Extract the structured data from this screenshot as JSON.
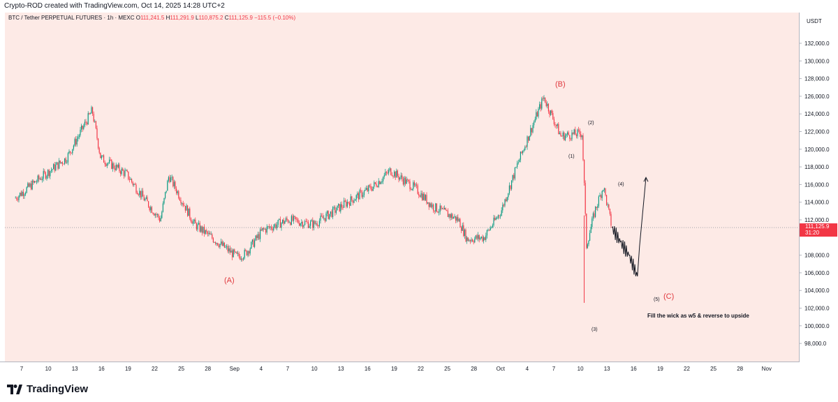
{
  "header": {
    "caption": "Crypto-ROD created with TradingView.com, Oct 14, 2025 14:28 UTC+2"
  },
  "legend": {
    "symbol": "BTC / Tether PERPETUAL FUTURES · 1h · MEXC",
    "o_label": "O",
    "o_value": "111,241.5",
    "h_label": "H",
    "h_value": "111,291.9",
    "l_label": "L",
    "l_value": "110,875.2",
    "c_label": "C",
    "c_value": "111,125.9",
    "change": "−115.5 (−0.10%)"
  },
  "price_axis": {
    "currency": "USDT",
    "ticks": [
      "132,000.0",
      "130,000.0",
      "128,000.0",
      "126,000.0",
      "124,000.0",
      "122,000.0",
      "120,000.0",
      "118,000.0",
      "116,000.0",
      "114,000.0",
      "112,000.0",
      "108,000.0",
      "106,000.0",
      "104,000.0",
      "102,000.0",
      "100,000.0",
      "98,000.0"
    ],
    "current_price": "111,125.9",
    "countdown": "31:20"
  },
  "time_axis": {
    "ticks": [
      "7",
      "10",
      "13",
      "16",
      "19",
      "22",
      "25",
      "28",
      "Sep",
      "4",
      "7",
      "10",
      "13",
      "16",
      "19",
      "22",
      "25",
      "28",
      "Oct",
      "4",
      "7",
      "10",
      "13",
      "16",
      "19",
      "22",
      "25",
      "28",
      "Nov"
    ]
  },
  "annotations": {
    "wave_A": "(A)",
    "wave_B": "(B)",
    "wave_C": "(C)",
    "w1": "(1)",
    "w2": "(2)",
    "w3": "(3)",
    "w4": "(4)",
    "w5": "(5)",
    "note": "Fill the wick as w5 & reverse to upside"
  },
  "colors": {
    "up": "#089981",
    "down": "#f23645",
    "background": "#fdeae6",
    "label_red": "#e0393e"
  },
  "footer": {
    "logo_text": "TradingView",
    "logo_icon": "tradingview-logo-icon"
  },
  "chart_data": {
    "type": "line",
    "title": "BTC / Tether PERPETUAL FUTURES · 1h · MEXC",
    "xlabel": "",
    "ylabel": "",
    "ylim": [
      97000,
      134000
    ],
    "grid": false,
    "x": [
      "Aug 5",
      "Aug 8",
      "Aug 11",
      "Aug 14",
      "Aug 15",
      "Aug 18",
      "Aug 20",
      "Aug 22",
      "Aug 23",
      "Aug 26",
      "Aug 28",
      "Aug 31",
      "Sep 1",
      "Sep 3",
      "Sep 6",
      "Sep 9",
      "Sep 13",
      "Sep 16",
      "Sep 18",
      "Sep 21",
      "Sep 23",
      "Sep 26",
      "Sep 27",
      "Sep 29",
      "Oct 1",
      "Oct 3",
      "Oct 6",
      "Oct 8",
      "Oct 10 12:00",
      "Oct 10 18:00",
      "Oct 11",
      "Oct 12",
      "Oct 13",
      "Oct 14"
    ],
    "series": [
      {
        "values": [
          114500,
          116800,
          119000,
          124400,
          119000,
          117200,
          114500,
          112000,
          117000,
          111500,
          110000,
          107800,
          108200,
          110800,
          112000,
          111500,
          114000,
          115800,
          117600,
          115500,
          113500,
          112000,
          109800,
          110000,
          113000,
          118500,
          125900,
          121500,
          121800,
          116000,
          109000,
          113000,
          115800,
          111126
        ]
      }
    ],
    "projection": {
      "x": [
        "Oct 14",
        "Oct 15",
        "Oct 16",
        "Oct 17",
        "Oct 18"
      ],
      "values": [
        111126,
        109500,
        108000,
        105600,
        116800
      ]
    }
  }
}
